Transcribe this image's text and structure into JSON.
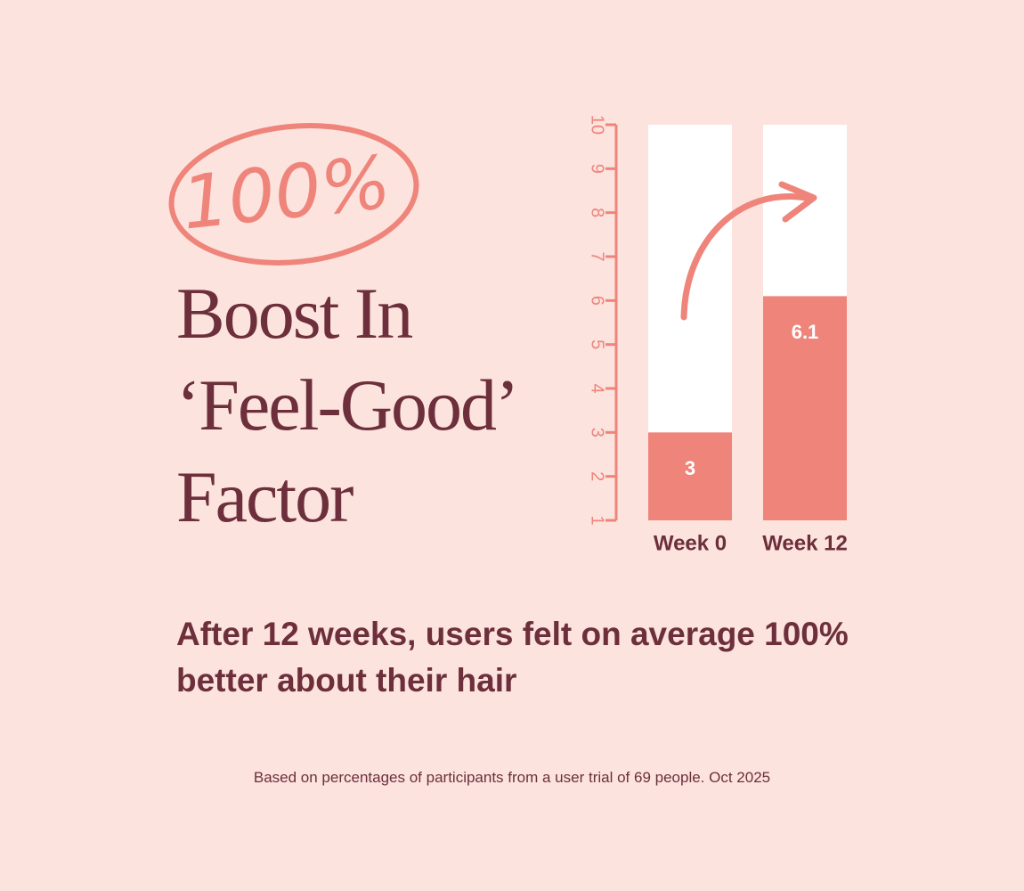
{
  "chart_data": {
    "type": "bar",
    "badge": "100%",
    "title": "Boost In ‘Feel-Good’ Factor",
    "subtitle": "After 12 weeks, users felt on average 100% better about their hair",
    "footnote": "Based on percentages of participants from a user trial of 69 people. Oct 2025",
    "categories": [
      "Week 0",
      "Week 12"
    ],
    "values": [
      3,
      6.1
    ],
    "color": "#ef847b",
    "ylim": [
      1,
      10
    ],
    "yticks": [
      1,
      2,
      3,
      4,
      5,
      6,
      7,
      8,
      9,
      10
    ]
  }
}
